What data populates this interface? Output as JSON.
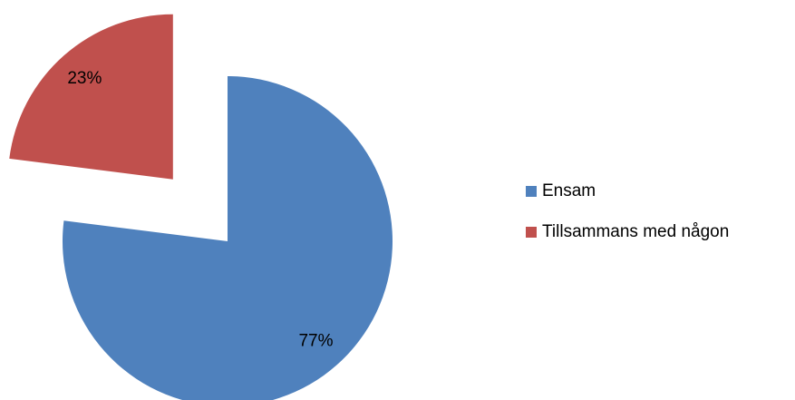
{
  "chart_data": {
    "type": "pie",
    "categories": [
      "Ensam",
      "Tillsammans med någon"
    ],
    "values": [
      77,
      23
    ],
    "value_labels": [
      "77%",
      "23%"
    ],
    "colors": [
      "#4f81bd",
      "#c0504d"
    ],
    "legend": "right"
  }
}
